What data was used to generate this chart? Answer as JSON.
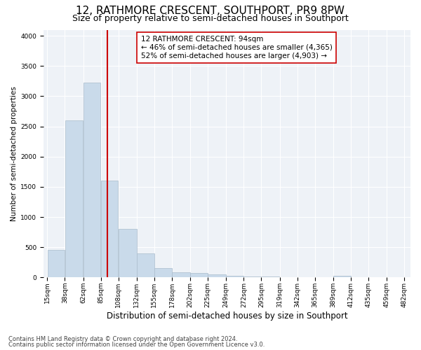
{
  "title": "12, RATHMORE CRESCENT, SOUTHPORT, PR9 8PW",
  "subtitle": "Size of property relative to semi-detached houses in Southport",
  "xlabel": "Distribution of semi-detached houses by size in Southport",
  "ylabel": "Number of semi-detached properties",
  "footnote1": "Contains HM Land Registry data © Crown copyright and database right 2024.",
  "footnote2": "Contains public sector information licensed under the Open Government Licence v3.0.",
  "property_size": 94,
  "annotation_title": "12 RATHMORE CRESCENT: 94sqm",
  "annotation_line1": "← 46% of semi-detached houses are smaller (4,365)",
  "annotation_line2": "52% of semi-detached houses are larger (4,903) →",
  "bar_color": "#c9daea",
  "bar_edge_color": "#aabccc",
  "line_color": "#cc0000",
  "annotation_box_color": "#ffffff",
  "annotation_box_edge": "#cc0000",
  "background_color": "#eef2f7",
  "bin_edges": [
    15,
    38,
    62,
    85,
    108,
    132,
    155,
    178,
    202,
    225,
    249,
    272,
    295,
    319,
    342,
    365,
    389,
    412,
    435,
    459,
    482
  ],
  "bin_heights": [
    450,
    2600,
    3220,
    1600,
    800,
    400,
    150,
    90,
    70,
    55,
    30,
    20,
    15,
    5,
    5,
    2,
    30,
    2,
    2,
    2
  ],
  "ylim": [
    0,
    4100
  ],
  "yticks": [
    0,
    500,
    1000,
    1500,
    2000,
    2500,
    3000,
    3500,
    4000
  ],
  "title_fontsize": 11,
  "subtitle_fontsize": 9,
  "xlabel_fontsize": 8.5,
  "ylabel_fontsize": 7.5,
  "tick_fontsize": 6.5,
  "annotation_fontsize": 7.5,
  "footnote_fontsize": 6
}
